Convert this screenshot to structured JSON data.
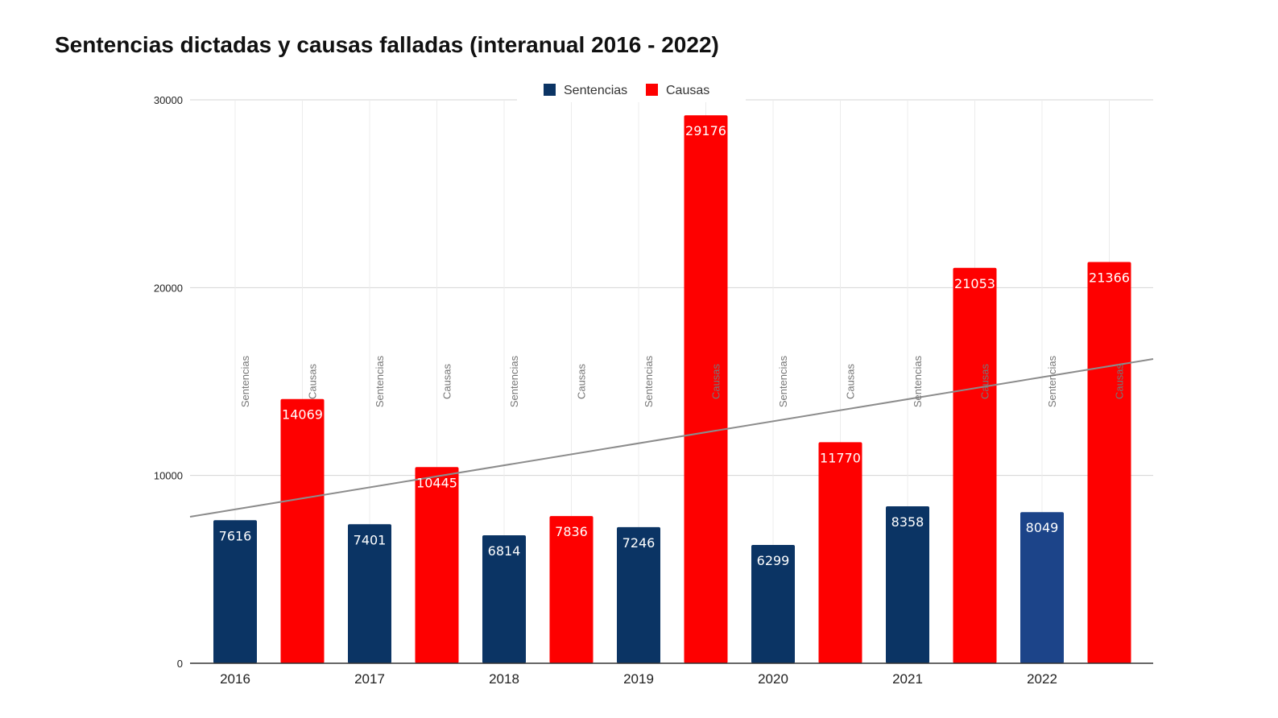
{
  "chart_data": {
    "type": "bar",
    "title": "Sentencias dictadas y causas falladas (interanual 2016 - 2022)",
    "categories": [
      "2016",
      "2017",
      "2018",
      "2019",
      "2020",
      "2021",
      "2022"
    ],
    "series": [
      {
        "name": "Sentencias",
        "color": "#0b3464",
        "values": [
          7616,
          7401,
          6814,
          7246,
          6299,
          8358,
          8049
        ]
      },
      {
        "name": "Causas",
        "color": "#fe0000",
        "values": [
          14069,
          10445,
          7836,
          29176,
          11770,
          21053,
          21366
        ]
      }
    ],
    "highlight_color": "#1c4489",
    "ylim": [
      0,
      30000
    ],
    "yticks": [
      0,
      10000,
      20000,
      30000
    ],
    "ytick_labels": [
      "0",
      "10000",
      "20000",
      "30000"
    ],
    "trendline": {
      "start": 7800,
      "end": 16200,
      "color": "#8c8c8c"
    },
    "xlabel": "",
    "ylabel": "",
    "legend": "top-center",
    "grid": true
  }
}
